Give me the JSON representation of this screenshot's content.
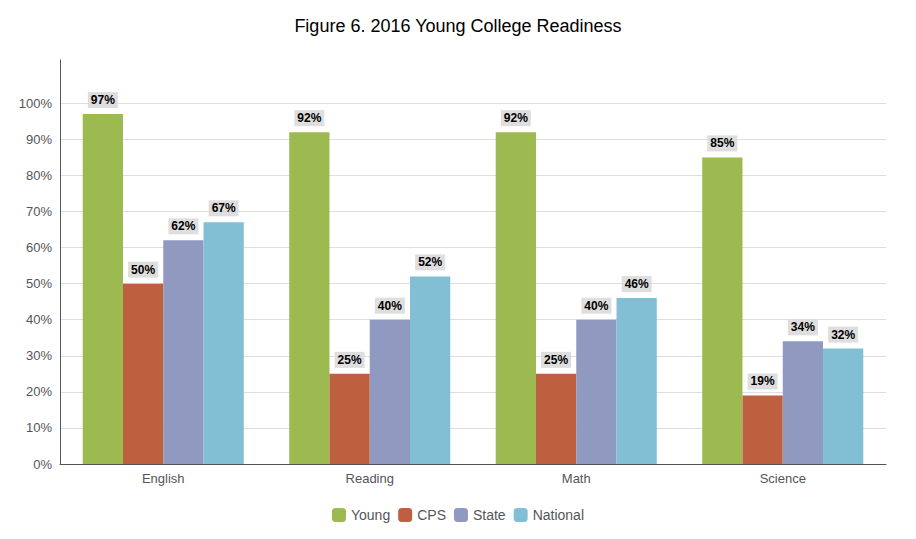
{
  "chart_data": {
    "type": "bar",
    "title": "Figure 6. 2016 Young College Readiness",
    "categories": [
      "English",
      "Reading",
      "Math",
      "Science"
    ],
    "series": [
      {
        "name": "Young",
        "color": "#9cba4f",
        "values": [
          97,
          92,
          92,
          85
        ],
        "value_labels": [
          "97%",
          "92%",
          "92%",
          "85%"
        ]
      },
      {
        "name": "CPS",
        "color": "#be6040",
        "values": [
          50,
          25,
          25,
          19
        ],
        "value_labels": [
          "50%",
          "25%",
          "25%",
          "19%"
        ]
      },
      {
        "name": "State",
        "color": "#9099c0",
        "values": [
          62,
          40,
          40,
          34
        ],
        "value_labels": [
          "62%",
          "40%",
          "40%",
          "34%"
        ]
      },
      {
        "name": "National",
        "color": "#82bfd4",
        "values": [
          67,
          52,
          46,
          32
        ],
        "value_labels": [
          "67%",
          "52%",
          "46%",
          "32%"
        ]
      }
    ],
    "ylim": [
      0,
      112
    ],
    "yticks": [
      {
        "value": 0,
        "label": "0%"
      },
      {
        "value": 10,
        "label": "10%"
      },
      {
        "value": 20,
        "label": "20%"
      },
      {
        "value": 30,
        "label": "30%"
      },
      {
        "value": 40,
        "label": "40%"
      },
      {
        "value": 50,
        "label": "50%"
      },
      {
        "value": 60,
        "label": "60%"
      },
      {
        "value": 70,
        "label": "70%"
      },
      {
        "value": 80,
        "label": "80%"
      },
      {
        "value": 90,
        "label": "90%"
      },
      {
        "value": 100,
        "label": "100%"
      }
    ],
    "grid": true,
    "legend": "bottom",
    "data_labels": true
  }
}
